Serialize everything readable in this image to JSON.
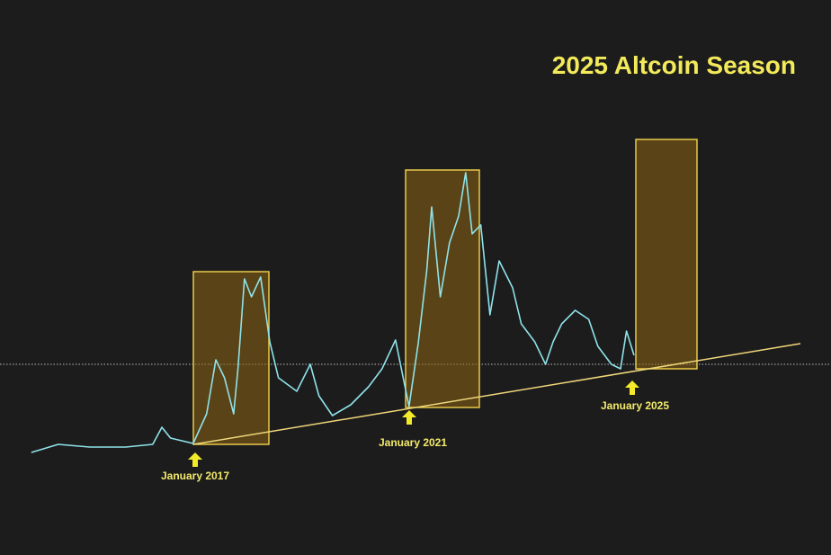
{
  "chart_data": {
    "type": "line",
    "title": "2025 Altcoin Season",
    "annotations": [
      "January 2017",
      "January 2021",
      "January 2025"
    ],
    "x": [
      2014.0,
      2014.5,
      2015.08,
      2015.75,
      2016.25,
      2016.42,
      2016.58,
      2017.0,
      2017.25,
      2017.42,
      2017.58,
      2017.75,
      2017.83,
      2017.95,
      2018.08,
      2018.25,
      2018.42,
      2018.58,
      2018.92,
      2019.17,
      2019.33,
      2019.58,
      2019.92,
      2020.25,
      2020.5,
      2020.75,
      2021.0,
      2021.17,
      2021.33,
      2021.42,
      2021.58,
      2021.75,
      2021.92,
      2022.05,
      2022.17,
      2022.33,
      2022.5,
      2022.67,
      2022.92,
      2023.08,
      2023.33,
      2023.53,
      2023.67,
      2023.83,
      2024.08,
      2024.33,
      2024.5,
      2024.75,
      2024.92,
      2025.03,
      2025.17
    ],
    "series": [
      {
        "color": "#8fe3ea",
        "values": [
          11.4,
          13.2,
          12.6,
          12.6,
          13.2,
          17,
          14.6,
          13.4,
          20,
          32,
          28,
          20,
          30,
          50,
          46,
          50.4,
          36,
          28,
          25,
          31,
          24,
          19.6,
          22,
          26,
          30,
          36.4,
          21.6,
          35.6,
          52,
          66,
          46,
          58,
          64,
          73.6,
          60,
          62,
          42,
          54,
          48,
          40,
          36,
          31,
          36,
          40,
          43,
          41,
          35,
          31,
          30,
          38.4,
          33
        ]
      }
    ],
    "xlim": [
      2013.42,
      2028.82
    ],
    "ylim": [
      -11.4,
      112
    ]
  }
}
